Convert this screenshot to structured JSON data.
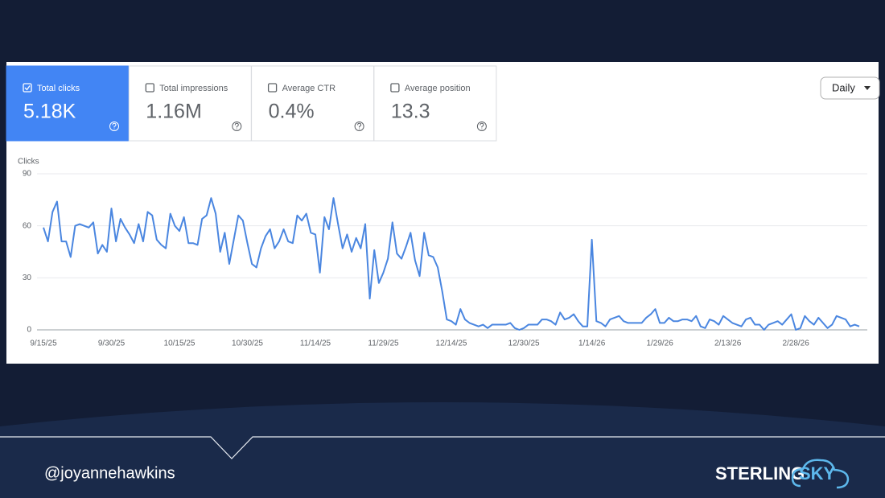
{
  "metrics": [
    {
      "label": "Total clicks",
      "value": "5.18K"
    },
    {
      "label": "Total impressions",
      "value": "1.16M"
    },
    {
      "label": "Average CTR",
      "value": "0.4%"
    },
    {
      "label": "Average position",
      "value": "13.3"
    }
  ],
  "controls": {
    "granularity": "Daily"
  },
  "footer": {
    "handle": "@joyannehawkins",
    "logo_left": "STERLING",
    "logo_right": "SKY"
  },
  "chart_data": {
    "type": "line",
    "y_label": "Clicks",
    "categories": [
      "9/15/25",
      null,
      null,
      null,
      null,
      null,
      null,
      null,
      null,
      null,
      null,
      null,
      null,
      null,
      null,
      "9/30/25",
      null,
      null,
      null,
      null,
      null,
      null,
      null,
      null,
      null,
      null,
      null,
      null,
      null,
      null,
      "10/15/25",
      null,
      null,
      null,
      null,
      null,
      null,
      null,
      null,
      null,
      null,
      null,
      null,
      null,
      null,
      "10/30/25",
      null,
      null,
      null,
      null,
      null,
      null,
      null,
      null,
      null,
      null,
      null,
      null,
      null,
      null,
      "11/14/25",
      null,
      null,
      null,
      null,
      null,
      null,
      null,
      null,
      null,
      null,
      null,
      null,
      null,
      null,
      "11/29/25",
      null,
      null,
      null,
      null,
      null,
      null,
      null,
      null,
      null,
      null,
      null,
      null,
      null,
      null,
      "12/14/25",
      null,
      null,
      null,
      null,
      null,
      null,
      null,
      null,
      null,
      null,
      null,
      null,
      null,
      null,
      null,
      "12/30/25",
      null,
      null,
      null,
      null,
      null,
      null,
      null,
      null,
      null,
      null,
      null,
      null,
      null,
      null,
      "1/14/26",
      null,
      null,
      null,
      null,
      null,
      null,
      null,
      null,
      null,
      null,
      null,
      null,
      null,
      null,
      "1/29/26",
      null,
      null,
      null,
      null,
      null,
      null,
      null,
      null,
      null,
      null,
      null,
      null,
      null,
      null,
      "2/13/26",
      null,
      null,
      null,
      null,
      null,
      null,
      null,
      null,
      null,
      null,
      null,
      null,
      null,
      null,
      "2/28/26",
      null,
      null,
      null,
      null,
      null,
      null,
      null,
      null,
      null,
      null,
      null,
      null,
      null,
      null
    ],
    "series": [
      {
        "name": "Clicks",
        "color": "#4a86e0",
        "values": [
          59,
          51,
          68,
          74,
          51,
          51,
          42,
          60,
          61,
          60,
          59,
          62,
          44,
          49,
          45,
          70,
          51,
          64,
          59,
          55,
          50,
          61,
          51,
          68,
          66,
          52,
          49,
          47,
          67,
          60,
          57,
          65,
          50,
          50,
          49,
          64,
          66,
          76,
          67,
          45,
          56,
          38,
          52,
          66,
          63,
          50,
          38,
          36,
          47,
          54,
          58,
          47,
          51,
          58,
          51,
          50,
          66,
          63,
          67,
          56,
          55,
          33,
          65,
          58,
          76,
          61,
          47,
          55,
          45,
          53,
          47,
          61,
          18,
          46,
          27,
          33,
          41,
          62,
          44,
          41,
          48,
          56,
          40,
          31,
          56,
          43,
          42,
          36,
          22,
          6,
          5,
          3,
          12,
          6,
          4,
          3,
          2,
          3,
          1,
          3,
          3,
          3,
          3,
          4,
          1,
          0,
          1,
          3,
          3,
          3,
          6,
          6,
          5,
          3,
          10,
          6,
          7,
          9,
          5,
          2,
          2,
          52,
          5,
          4,
          2,
          6,
          7,
          8,
          5,
          4,
          4,
          4,
          4,
          7,
          9,
          12,
          4,
          4,
          7,
          5,
          5,
          6,
          6,
          5,
          8,
          2,
          1,
          6,
          5,
          3,
          8,
          6,
          4,
          3,
          2,
          6,
          7,
          3,
          3,
          0,
          3,
          4,
          5,
          3,
          6,
          9,
          0,
          1,
          8,
          5,
          3,
          7,
          4,
          1,
          3,
          8,
          7,
          6,
          2,
          3,
          2
        ]
      }
    ],
    "ylim": [
      0,
      90
    ],
    "yticks": [
      0,
      30,
      60,
      90
    ],
    "grid": true
  }
}
